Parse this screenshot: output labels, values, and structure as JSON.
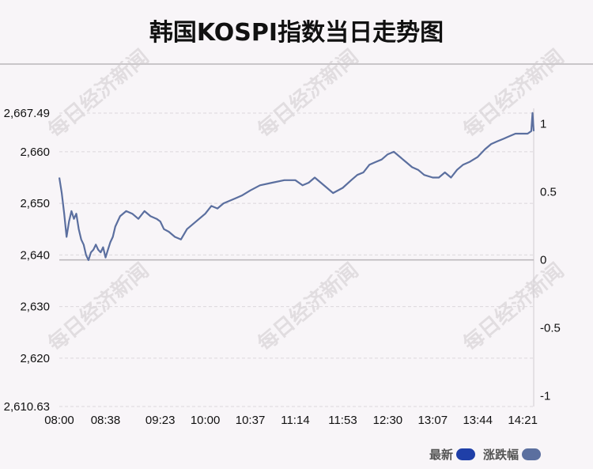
{
  "title": "韩国KOSPI指数当日走势图",
  "watermark_text": "每日经济新闻",
  "legend": [
    {
      "label": "最新",
      "color": "#1f3fa8"
    },
    {
      "label": "涨跌幅",
      "color": "#5b6f9f"
    }
  ],
  "chart_data": {
    "type": "line",
    "title": "韩国KOSPI指数当日走势图",
    "x_ticks": [
      "08:00",
      "08:38",
      "09:23",
      "10:00",
      "10:37",
      "11:14",
      "11:53",
      "12:30",
      "13:07",
      "13:44",
      "14:21"
    ],
    "y_left_ticks": [
      "2,667.49",
      "2,660",
      "2,650",
      "2,640",
      "2,630",
      "2,620",
      "2,610.63"
    ],
    "y_left_values": [
      2667.49,
      2660,
      2650,
      2640,
      2630,
      2620,
      2610.63
    ],
    "ylim": [
      2610.63,
      2667.49
    ],
    "y_right_ticks": [
      "1",
      "0.5",
      "0",
      "-0.5",
      "-1"
    ],
    "y_right_values": [
      1,
      0.5,
      0,
      -0.5,
      -1
    ],
    "y_right_lim": [
      -1.08,
      1.08
    ],
    "baseline": 2639.05,
    "grid": true,
    "line_color": "#5b6f9f",
    "series": [
      {
        "x": [
          "08:00",
          "08:02",
          "08:04",
          "08:06",
          "08:08",
          "08:10",
          "08:12",
          "08:14",
          "08:16",
          "08:18",
          "08:20",
          "08:22",
          "08:24",
          "08:26",
          "08:28",
          "08:30",
          "08:32",
          "08:34",
          "08:36",
          "08:38",
          "08:40",
          "08:42",
          "08:44",
          "08:46",
          "08:48",
          "08:50",
          "08:55",
          "09:00",
          "09:05",
          "09:10",
          "09:15",
          "09:20",
          "09:23",
          "09:26",
          "09:30",
          "09:35",
          "09:40",
          "09:45",
          "09:50",
          "09:55",
          "10:00",
          "10:05",
          "10:10",
          "10:15",
          "10:20",
          "10:25",
          "10:30",
          "10:37",
          "10:45",
          "10:55",
          "11:05",
          "11:14",
          "11:20",
          "11:25",
          "11:30",
          "11:35",
          "11:40",
          "11:45",
          "11:53",
          "12:00",
          "12:05",
          "12:10",
          "12:15",
          "12:20",
          "12:25",
          "12:30",
          "12:35",
          "12:40",
          "12:45",
          "12:50",
          "12:55",
          "13:00",
          "13:07",
          "13:12",
          "13:17",
          "13:22",
          "13:27",
          "13:32",
          "13:37",
          "13:44",
          "13:50",
          "13:55",
          "14:00",
          "14:05",
          "14:10",
          "14:15",
          "14:21",
          "14:25",
          "14:28",
          "14:29",
          "14:30"
        ],
        "values": [
          2655.0,
          2652.0,
          2648.0,
          2643.5,
          2646.5,
          2648.5,
          2647.0,
          2648.0,
          2645.0,
          2643.0,
          2642.0,
          2640.0,
          2639.0,
          2640.5,
          2641.0,
          2642.0,
          2641.0,
          2640.5,
          2641.5,
          2639.5,
          2641.0,
          2642.5,
          2643.5,
          2645.5,
          2646.5,
          2647.5,
          2648.5,
          2648.0,
          2647.0,
          2648.5,
          2647.5,
          2647.0,
          2646.5,
          2645.0,
          2644.5,
          2643.5,
          2643.0,
          2645.0,
          2646.0,
          2647.0,
          2648.0,
          2649.5,
          2649.0,
          2650.0,
          2650.5,
          2651.0,
          2651.5,
          2652.5,
          2653.5,
          2654.0,
          2654.5,
          2654.5,
          2653.5,
          2654.0,
          2655.0,
          2654.0,
          2653.0,
          2652.0,
          2653.0,
          2654.5,
          2655.5,
          2656.0,
          2657.5,
          2658.0,
          2658.5,
          2659.5,
          2660.0,
          2659.0,
          2658.0,
          2657.0,
          2656.5,
          2655.5,
          2655.0,
          2655.0,
          2656.0,
          2655.0,
          2656.5,
          2657.5,
          2658.0,
          2659.0,
          2660.5,
          2661.5,
          2662.0,
          2662.5,
          2663.0,
          2663.5,
          2663.5,
          2663.5,
          2664.0,
          2667.5,
          2664.0
        ]
      }
    ]
  }
}
